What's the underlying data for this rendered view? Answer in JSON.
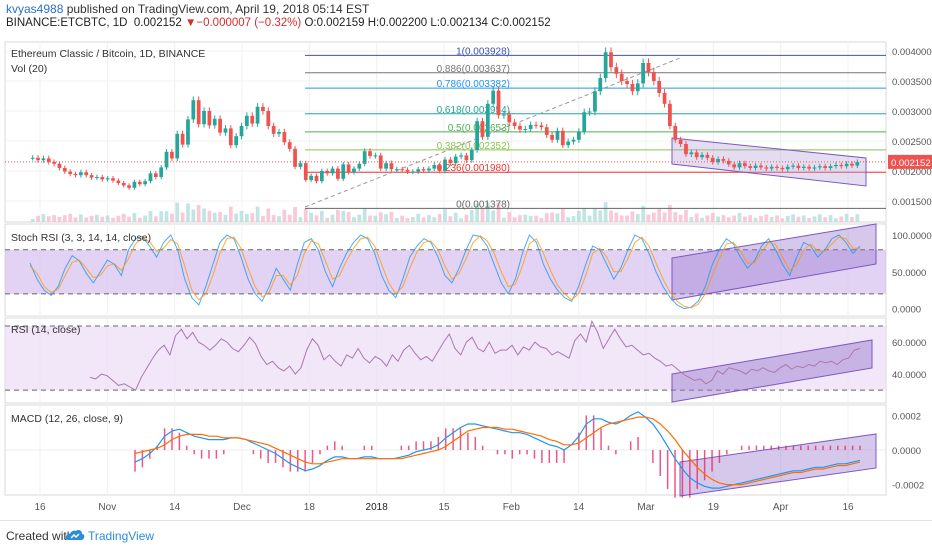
{
  "header": {
    "user": "kvyas4988",
    "published_text": " published on TradingView.com, April 19, 2018 05:14 EST",
    "symbol": "BINANCE:ETCBTC, 1D",
    "last": "0.002152",
    "change_arrow": "▼",
    "change": "−0.000007 (−0.32%)",
    "ohlc": "O:0.002159 H:0.002200 L:0.002134 C:0.002152"
  },
  "footer": {
    "created_with": "Created with",
    "brand": "TradingView",
    "logo_icon": "tradingview-cloud-icon"
  },
  "colors": {
    "up": "#26a69a",
    "down": "#ef5350",
    "stoch_fill": "#d6bff0",
    "rsi_fill": "#ecdcf7",
    "channel": "#7e57c2",
    "macd": "#2196f3",
    "signal": "#ff6d00",
    "hist": "#e91e63"
  },
  "chart_data": [
    {
      "type": "candlestick",
      "title": "Ethereum Classic / Bitcoin, 1D, BINANCE",
      "volume_label": "Vol (20)",
      "price_label": "0.002152",
      "ylim": [
        0.00115,
        0.00415
      ],
      "y_ticks": [
        "0.004000",
        "0.003500",
        "0.003000",
        "0.002500",
        "0.002000",
        "0.001500"
      ],
      "fib_levels": [
        {
          "label": "1(0.003928)",
          "value": 0.003928,
          "color": "#3f51b5"
        },
        {
          "label": "0.886(0.003637)",
          "value": 0.003637,
          "color": "#777777"
        },
        {
          "label": "0.786(0.003382)",
          "value": 0.003382,
          "color": "#2196f3"
        },
        {
          "label": "0.618(0.002954)",
          "value": 0.002954,
          "color": "#26a69a"
        },
        {
          "label": "0.5(0.002653)",
          "value": 0.002653,
          "color": "#4caf50"
        },
        {
          "label": "0.382(0.002352)",
          "value": 0.002352,
          "color": "#8bc34a"
        },
        {
          "label": "0.236(0.001980)",
          "value": 0.00198,
          "color": "#e53935"
        },
        {
          "label": "0(0.001378)",
          "value": 0.001378,
          "color": "#666666"
        }
      ],
      "close_series": [
        0.00222,
        0.00218,
        0.00221,
        0.00215,
        0.00212,
        0.00205,
        0.00199,
        0.00195,
        0.00193,
        0.00198,
        0.00193,
        0.00189,
        0.0019,
        0.00186,
        0.00188,
        0.00184,
        0.0018,
        0.00176,
        0.00172,
        0.00182,
        0.00178,
        0.00183,
        0.00196,
        0.0019,
        0.00206,
        0.00232,
        0.00221,
        0.00262,
        0.00244,
        0.00286,
        0.00318,
        0.00278,
        0.003,
        0.00276,
        0.00287,
        0.00264,
        0.00271,
        0.00243,
        0.00258,
        0.00275,
        0.00292,
        0.00279,
        0.00307,
        0.003,
        0.00275,
        0.00262,
        0.00265,
        0.00248,
        0.00237,
        0.00207,
        0.00213,
        0.00185,
        0.00192,
        0.00183,
        0.002,
        0.00196,
        0.00204,
        0.00187,
        0.00211,
        0.00198,
        0.00204,
        0.00212,
        0.00233,
        0.00225,
        0.00226,
        0.00204,
        0.00213,
        0.00203,
        0.00203,
        0.00202,
        0.00199,
        0.00199,
        0.00203,
        0.00201,
        0.00204,
        0.0021,
        0.002,
        0.00219,
        0.00213,
        0.00224,
        0.00226,
        0.00218,
        0.00235,
        0.00283,
        0.00257,
        0.00312,
        0.00334,
        0.00293,
        0.00294,
        0.00281,
        0.00275,
        0.00269,
        0.0027,
        0.00277,
        0.00276,
        0.00273,
        0.0026,
        0.00252,
        0.00267,
        0.00243,
        0.00249,
        0.00252,
        0.00266,
        0.00298,
        0.00299,
        0.00333,
        0.00355,
        0.00398,
        0.00373,
        0.00362,
        0.0035,
        0.00345,
        0.00333,
        0.00346,
        0.0038,
        0.00365,
        0.0035,
        0.0033,
        0.00312,
        0.00275,
        0.00252,
        0.00245,
        0.00228,
        0.00231,
        0.00223,
        0.00227,
        0.00222,
        0.00215,
        0.0022,
        0.00217,
        0.00211,
        0.00206,
        0.00213,
        0.00208,
        0.00205,
        0.00209,
        0.00206,
        0.00204,
        0.00207,
        0.00205,
        0.00203,
        0.00207,
        0.00209,
        0.00205,
        0.00207,
        0.00204,
        0.00206,
        0.00208,
        0.00205,
        0.00208,
        0.0021,
        0.00208,
        0.00212,
        0.00209,
        0.00215
      ]
    },
    {
      "type": "line",
      "title": "Stoch RSI (3, 3, 14, 14, close)",
      "ylim": [
        -10,
        115
      ],
      "y_ticks": [
        "100.0000",
        "50.0000",
        "0.0000"
      ],
      "bands": [
        20,
        80
      ],
      "series": [
        {
          "name": "K",
          "values": [
            62,
            40,
            25,
            18,
            30,
            55,
            72,
            65,
            48,
            35,
            50,
            66,
            60,
            45,
            80,
            95,
            98,
            85,
            70,
            90,
            100,
            80,
            40,
            15,
            5,
            30,
            60,
            90,
            100,
            95,
            70,
            40,
            20,
            10,
            30,
            55,
            40,
            25,
            60,
            90,
            95,
            80,
            50,
            30,
            55,
            75,
            90,
            100,
            95,
            75,
            45,
            25,
            15,
            40,
            70,
            85,
            95,
            90,
            70,
            45,
            35,
            55,
            80,
            100,
            98,
            85,
            60,
            35,
            20,
            40,
            75,
            100,
            90,
            60,
            40,
            25,
            15,
            10,
            30,
            60,
            85,
            80,
            60,
            40,
            55,
            80,
            100,
            95,
            75,
            50,
            30,
            15,
            5,
            0,
            2,
            10,
            30,
            60,
            80,
            95,
            88,
            70,
            55,
            65,
            85,
            95,
            80,
            60,
            45,
            70,
            90,
            85,
            70,
            80,
            95,
            100,
            90,
            75,
            85
          ]
        },
        {
          "name": "D",
          "values": [
            58,
            48,
            30,
            22,
            26,
            45,
            63,
            66,
            55,
            42,
            45,
            58,
            61,
            52,
            68,
            88,
            96,
            91,
            78,
            82,
            94,
            88,
            58,
            25,
            12,
            20,
            45,
            75,
            95,
            97,
            82,
            55,
            30,
            16,
            22,
            45,
            45,
            32,
            45,
            75,
            92,
            88,
            65,
            40,
            45,
            65,
            82,
            95,
            97,
            85,
            60,
            35,
            20,
            30,
            55,
            77,
            90,
            92,
            80,
            58,
            40,
            48,
            68,
            90,
            99,
            92,
            75,
            50,
            30,
            33,
            58,
            88,
            95,
            75,
            52,
            32,
            20,
            12,
            20,
            45,
            75,
            82,
            70,
            50,
            50,
            68,
            90,
            97,
            85,
            62,
            40,
            22,
            10,
            3,
            1,
            6,
            20,
            45,
            68,
            88,
            90,
            78,
            62,
            62,
            77,
            90,
            87,
            70,
            52,
            60,
            80,
            88,
            78,
            78,
            88,
            97,
            95,
            82,
            82
          ]
        }
      ],
      "channel": true
    },
    {
      "type": "line",
      "title": "RSI (14, close)",
      "ylim": [
        22,
        75
      ],
      "y_ticks": [
        "60.0000",
        "40.0000"
      ],
      "bands": [
        30,
        70
      ],
      "series": [
        {
          "name": "RSI",
          "values": [
            38,
            37,
            40,
            39,
            36,
            33,
            34,
            32,
            30,
            38,
            44,
            50,
            55,
            58,
            52,
            64,
            68,
            62,
            66,
            60,
            58,
            55,
            58,
            62,
            60,
            56,
            54,
            58,
            63,
            59,
            51,
            46,
            48,
            44,
            42,
            45,
            40,
            44,
            55,
            62,
            58,
            49,
            52,
            48,
            45,
            52,
            50,
            56,
            50,
            47,
            51,
            49,
            45,
            52,
            48,
            55,
            58,
            53,
            49,
            51,
            48,
            54,
            60,
            65,
            56,
            52,
            60,
            63,
            56,
            54,
            60,
            53,
            55,
            55,
            58,
            52,
            57,
            55,
            60,
            57,
            56,
            52,
            54,
            52,
            50,
            61,
            65,
            60,
            73,
            66,
            56,
            62,
            68,
            62,
            57,
            58,
            55,
            52,
            53,
            50,
            48,
            45,
            46,
            43,
            40,
            38,
            36,
            37,
            34,
            36,
            42,
            40,
            44,
            43,
            42,
            40,
            43,
            42,
            44,
            42,
            41,
            44,
            46,
            43,
            45,
            44,
            46,
            45,
            48,
            47,
            48,
            46,
            49,
            50,
            55,
            56
          ]
        }
      ],
      "channel": true
    },
    {
      "type": "line",
      "title": "MACD (12, 26, close, 9)",
      "ylim": [
        -0.00026,
        0.00026
      ],
      "y_ticks": [
        "0.0002",
        "0.0000",
        "-0.0002"
      ],
      "series": [
        {
          "name": "MACD",
          "values": [
            -7e-05,
            -5e-05,
            -2e-05,
            2e-05,
            8e-05,
            0.00011,
            0.00012,
            0.0001,
            8e-05,
            7e-05,
            6e-05,
            6e-05,
            6e-05,
            7e-05,
            7e-05,
            6e-05,
            4e-05,
            2e-05,
            0.0,
            -2e-05,
            -5e-05,
            -8e-05,
            -0.0001,
            -0.00012,
            -0.00011,
            -9e-05,
            -6e-05,
            -4e-05,
            -4e-05,
            -5e-05,
            -5e-05,
            -4e-05,
            -4e-05,
            -5e-05,
            -5e-05,
            -5e-05,
            -4e-05,
            -3e-05,
            -1e-05,
            0.0,
            1e-05,
            3e-05,
            7e-05,
            0.0001,
            0.00013,
            0.00015,
            0.00015,
            0.00014,
            0.00013,
            0.00012,
            0.00011,
            0.0001,
            0.0001,
            9e-05,
            7e-05,
            5e-05,
            3e-05,
            2e-05,
            0.0,
            3e-05,
            8e-05,
            0.00015,
            0.00018,
            0.00018,
            0.00016,
            0.00015,
            0.00017,
            0.0002,
            0.00022,
            0.00019,
            0.00015,
            9e-05,
            2e-05,
            -5e-05,
            -0.00011,
            -0.00016,
            -0.00019,
            -0.00021,
            -0.00022,
            -0.00022,
            -0.00021,
            -0.0002,
            -0.00019,
            -0.00018,
            -0.00017,
            -0.00016,
            -0.00015,
            -0.00014,
            -0.00013,
            -0.00012,
            -0.00012,
            -0.00011,
            -0.0001,
            -0.0001,
            -9e-05,
            -8e-05,
            -8e-05,
            -7e-05,
            -6e-05
          ]
        },
        {
          "name": "Signal",
          "values": [
            -2e-05,
            -1e-05,
            0.0,
            1e-05,
            3e-05,
            6e-05,
            8e-05,
            9e-05,
            9e-05,
            9e-05,
            8e-05,
            8e-05,
            7e-05,
            7e-05,
            7e-05,
            6e-05,
            5e-05,
            4e-05,
            3e-05,
            1e-05,
            -1e-05,
            -3e-05,
            -5e-05,
            -7e-05,
            -8e-05,
            -8e-05,
            -7e-05,
            -6e-05,
            -5e-05,
            -5e-05,
            -5e-05,
            -5e-05,
            -5e-05,
            -5e-05,
            -5e-05,
            -5e-05,
            -5e-05,
            -4e-05,
            -3e-05,
            -2e-05,
            -1e-05,
            0.0,
            2e-05,
            5e-05,
            8e-05,
            0.00011,
            0.00012,
            0.00013,
            0.00013,
            0.00013,
            0.00012,
            0.00012,
            0.00011,
            0.0001,
            9e-05,
            8e-05,
            6e-05,
            5e-05,
            3e-05,
            3e-05,
            4e-05,
            7e-05,
            0.0001,
            0.00013,
            0.00015,
            0.00016,
            0.00017,
            0.00018,
            0.00019,
            0.00019,
            0.00018,
            0.00015,
            0.00011,
            6e-05,
            0.0,
            -5e-05,
            -0.0001,
            -0.00014,
            -0.00017,
            -0.00019,
            -0.0002,
            -0.0002,
            -0.0002,
            -0.00019,
            -0.00018,
            -0.00017,
            -0.00016,
            -0.00015,
            -0.00014,
            -0.00013,
            -0.00013,
            -0.00012,
            -0.00011,
            -0.00011,
            -0.0001,
            -9e-05,
            -9e-05,
            -8e-05,
            -7e-05
          ]
        }
      ],
      "channel": true
    }
  ],
  "x_axis_labels": [
    "16",
    "Nov",
    "14",
    "Dec",
    "18",
    "2018",
    "15",
    "Feb",
    "14",
    "Mar",
    "19",
    "Apr",
    "16"
  ]
}
